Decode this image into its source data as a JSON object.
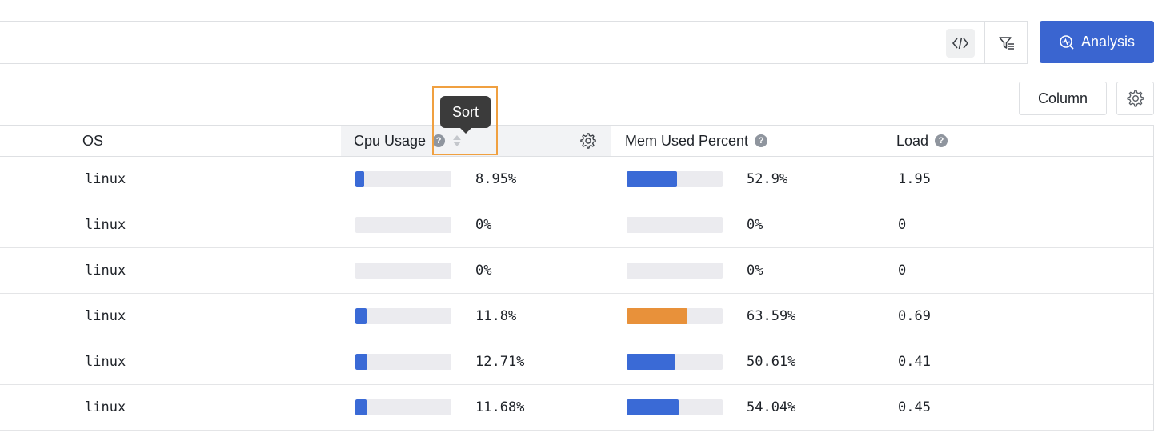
{
  "toolbar": {
    "analysis_label": "Analysis",
    "column_label": "Column"
  },
  "tooltip": {
    "text": "Sort"
  },
  "table": {
    "headers": {
      "os": "OS",
      "cpu": "Cpu Usage",
      "mem": "Mem Used Percent",
      "load": "Load"
    },
    "help_glyph": "?",
    "rows": [
      {
        "os": "linux",
        "cpu": "8.95%",
        "cpu_value": 8.95,
        "mem": "52.9%",
        "mem_value": 52.9,
        "mem_color": "#3a6ad6",
        "load": "1.95"
      },
      {
        "os": "linux",
        "cpu": "0%",
        "cpu_value": 0,
        "mem": "0%",
        "mem_value": 0,
        "mem_color": "#3a6ad6",
        "load": "0"
      },
      {
        "os": "linux",
        "cpu": "0%",
        "cpu_value": 0,
        "mem": "0%",
        "mem_value": 0,
        "mem_color": "#3a6ad6",
        "load": "0"
      },
      {
        "os": "linux",
        "cpu": "11.8%",
        "cpu_value": 11.8,
        "mem": "63.59%",
        "mem_value": 63.59,
        "mem_color": "#e8913a",
        "load": "0.69"
      },
      {
        "os": "linux",
        "cpu": "12.71%",
        "cpu_value": 12.71,
        "mem": "50.61%",
        "mem_value": 50.61,
        "mem_color": "#3a6ad6",
        "load": "0.41"
      },
      {
        "os": "linux",
        "cpu": "11.68%",
        "cpu_value": 11.68,
        "mem": "54.04%",
        "mem_value": 54.04,
        "mem_color": "#3a6ad6",
        "load": "0.45"
      }
    ]
  },
  "colors": {
    "accent": "#3a65d0",
    "cpu_bar": "#3a6ad6",
    "bar_track": "#ebebef",
    "highlight": "#f0a040"
  },
  "icons": {
    "code": "code-icon",
    "filter": "filter-list-icon",
    "analysis": "analysis-icon",
    "settings": "gear-icon",
    "help": "help-circle-icon",
    "sort": "sort-icon"
  }
}
